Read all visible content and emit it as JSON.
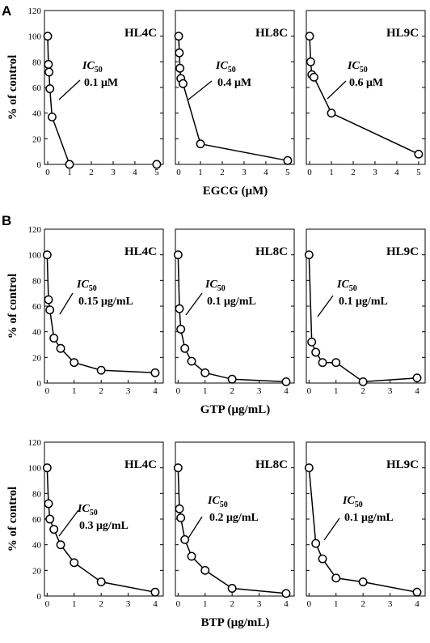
{
  "figure": {
    "panel_labels": [
      "A",
      "B"
    ],
    "ylabel": "% of control"
  },
  "chart_data": [
    {
      "type": "line",
      "row": 0,
      "col": 0,
      "title": "HL4C",
      "ic50_label": "IC",
      "ic50_sub": "50",
      "ic50_value": "0.1 μM",
      "xlabel": "EGCG (μM)",
      "ylabel": "% of control",
      "xlim": [
        -0.15,
        5.3
      ],
      "ylim": [
        0,
        120
      ],
      "xticks": [
        0,
        1,
        2,
        3,
        4,
        5
      ],
      "yticks": [
        0,
        20,
        40,
        60,
        80,
        100,
        120
      ],
      "series": [
        {
          "x": [
            0,
            0.03,
            0.06,
            0.1,
            0.2,
            1,
            5
          ],
          "y": [
            100,
            78,
            72,
            59,
            37,
            0,
            0
          ]
        }
      ],
      "separate_points": [
        {
          "x": 5,
          "y": 0
        }
      ],
      "line_points": 6
    },
    {
      "type": "line",
      "row": 0,
      "col": 1,
      "title": "HL8C",
      "ic50_label": "IC",
      "ic50_sub": "50",
      "ic50_value": "0.4 μM",
      "xlabel": "",
      "ylabel": "",
      "xlim": [
        -0.15,
        5.3
      ],
      "ylim": [
        0,
        120
      ],
      "xticks": [
        0,
        1,
        2,
        3,
        4,
        5
      ],
      "yticks": [
        0,
        20,
        40,
        60,
        80,
        100,
        120
      ],
      "series": [
        {
          "x": [
            0,
            0.03,
            0.06,
            0.1,
            0.2,
            1,
            5
          ],
          "y": [
            100,
            87,
            75,
            67,
            63,
            16,
            3
          ]
        }
      ]
    },
    {
      "type": "line",
      "row": 0,
      "col": 2,
      "title": "HL9C",
      "ic50_label": "IC",
      "ic50_sub": "50",
      "ic50_value": "0.6 μM",
      "xlabel": "",
      "ylabel": "",
      "xlim": [
        -0.15,
        5.3
      ],
      "ylim": [
        0,
        120
      ],
      "xticks": [
        0,
        1,
        2,
        3,
        4,
        5
      ],
      "yticks": [
        0,
        20,
        40,
        60,
        80,
        100,
        120
      ],
      "series": [
        {
          "x": [
            0,
            0.05,
            0.1,
            0.2,
            1,
            5
          ],
          "y": [
            100,
            80,
            70,
            68,
            40,
            8
          ]
        }
      ]
    },
    {
      "type": "line",
      "row": 1,
      "col": 0,
      "title": "HL4C",
      "ic50_label": "IC",
      "ic50_sub": "50",
      "ic50_value": "0.15 μg/mL",
      "xlabel": "GTP (μg/mL)",
      "ylabel": "% of control",
      "xlim": [
        -0.1,
        4.3
      ],
      "ylim": [
        0,
        120
      ],
      "xticks": [
        0,
        1,
        2,
        3,
        4
      ],
      "yticks": [
        0,
        20,
        40,
        60,
        80,
        100,
        120
      ],
      "series": [
        {
          "x": [
            0,
            0.05,
            0.1,
            0.25,
            0.5,
            1,
            2,
            4
          ],
          "y": [
            100,
            65,
            57,
            35,
            27,
            16,
            10,
            8
          ]
        }
      ]
    },
    {
      "type": "line",
      "row": 1,
      "col": 1,
      "title": "HL8C",
      "ic50_label": "IC",
      "ic50_sub": "50",
      "ic50_value": "0.1 μg/mL",
      "xlabel": "",
      "ylabel": "",
      "xlim": [
        -0.1,
        4.3
      ],
      "ylim": [
        0,
        120
      ],
      "xticks": [
        0,
        1,
        2,
        3,
        4
      ],
      "yticks": [
        0,
        20,
        40,
        60,
        80,
        100,
        120
      ],
      "series": [
        {
          "x": [
            0,
            0.05,
            0.1,
            0.25,
            0.5,
            1,
            2,
            4
          ],
          "y": [
            100,
            58,
            42,
            27,
            17,
            8,
            3,
            1
          ]
        }
      ]
    },
    {
      "type": "line",
      "row": 1,
      "col": 2,
      "title": "HL9C",
      "ic50_label": "IC",
      "ic50_sub": "50",
      "ic50_value": "0.1 μg/mL",
      "xlabel": "",
      "ylabel": "",
      "xlim": [
        -0.1,
        4.3
      ],
      "ylim": [
        0,
        120
      ],
      "xticks": [
        0,
        1,
        2,
        3,
        4
      ],
      "yticks": [
        0,
        20,
        40,
        60,
        80,
        100,
        120
      ],
      "series": [
        {
          "x": [
            0,
            0.1,
            0.25,
            0.5,
            1,
            2,
            4
          ],
          "y": [
            100,
            32,
            24,
            16,
            16,
            1,
            4
          ]
        }
      ]
    },
    {
      "type": "line",
      "row": 2,
      "col": 0,
      "title": "HL4C",
      "ic50_label": "IC",
      "ic50_sub": "50",
      "ic50_value": "0.3 μg/mL",
      "xlabel": "BTP (μg/mL)",
      "ylabel": "% of control",
      "xlim": [
        -0.1,
        4.3
      ],
      "ylim": [
        0,
        120
      ],
      "xticks": [
        0,
        1,
        2,
        3,
        4
      ],
      "yticks": [
        0,
        20,
        40,
        60,
        80,
        100,
        120
      ],
      "series": [
        {
          "x": [
            0,
            0.05,
            0.1,
            0.25,
            0.5,
            1,
            2,
            4
          ],
          "y": [
            100,
            72,
            60,
            52,
            40,
            26,
            11,
            3
          ]
        }
      ]
    },
    {
      "type": "line",
      "row": 2,
      "col": 1,
      "title": "HL8C",
      "ic50_label": "IC",
      "ic50_sub": "50",
      "ic50_value": "0.2 μg/mL",
      "xlabel": "",
      "ylabel": "",
      "xlim": [
        -0.1,
        4.3
      ],
      "ylim": [
        0,
        120
      ],
      "xticks": [
        0,
        1,
        2,
        3,
        4
      ],
      "yticks": [
        0,
        20,
        40,
        60,
        80,
        100,
        120
      ],
      "series": [
        {
          "x": [
            0,
            0.05,
            0.1,
            0.25,
            0.5,
            1,
            2,
            4
          ],
          "y": [
            100,
            68,
            61,
            44,
            31,
            20,
            6,
            2
          ]
        }
      ]
    },
    {
      "type": "line",
      "row": 2,
      "col": 2,
      "title": "HL9C",
      "ic50_label": "IC",
      "ic50_sub": "50",
      "ic50_value": "0.1 μg/mL",
      "xlabel": "",
      "ylabel": "",
      "xlim": [
        -0.1,
        4.3
      ],
      "ylim": [
        0,
        120
      ],
      "xticks": [
        0,
        1,
        2,
        3,
        4
      ],
      "yticks": [
        0,
        20,
        40,
        60,
        80,
        100,
        120
      ],
      "series": [
        {
          "x": [
            0,
            0.25,
            0.5,
            1,
            2,
            4
          ],
          "y": [
            100,
            41,
            29,
            14,
            11,
            3
          ]
        }
      ]
    }
  ]
}
